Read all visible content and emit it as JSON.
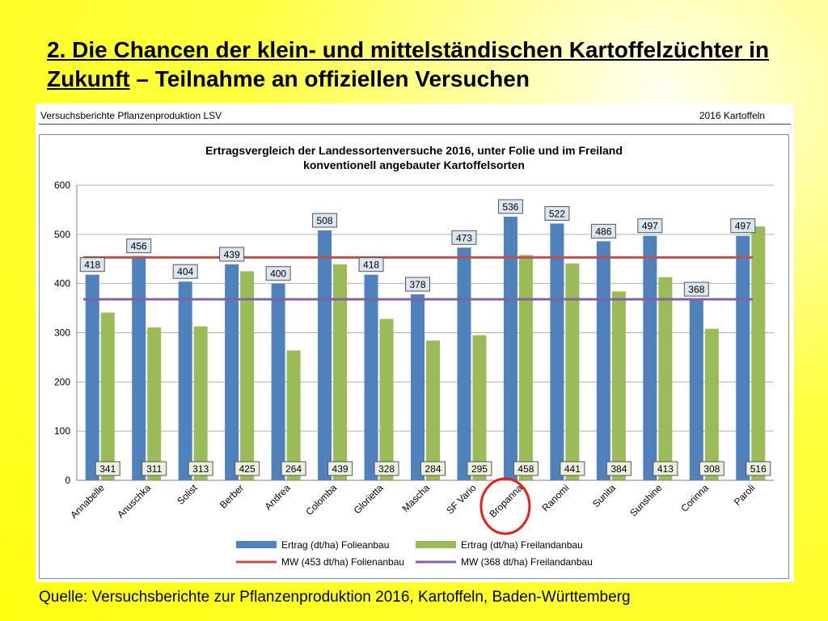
{
  "slide": {
    "title_underlined": "2. Die Chancen der klein- und mittelständischen Kartoffelzüchter in Zukunft",
    "title_rest": " – Teilnahme an offiziellen Versuchen",
    "source": "Quelle: Versuchsberichte zur Pflanzenproduktion 2016, Kartoffeln, Baden-Württemberg"
  },
  "panel": {
    "header_left": "Versuchsberichte Pflanzenproduktion LSV",
    "header_right": "2016 Kartoffeln"
  },
  "chart_data": {
    "type": "bar",
    "title_line1": "Ertragsvergleich der Landessortenversuche 2016, unter Folie und im Freiland",
    "title_line2": "konventionell angebauter Kartoffelsorten",
    "categories": [
      "Annabelle",
      "Anuschka",
      "Solist",
      "Berber",
      "Andrea",
      "Colomba",
      "Glorietta",
      "Mascha",
      "SF Vario",
      "Bropanna",
      "Ranomi",
      "Sunita",
      "Sunshine",
      "Corinna",
      "Paroli"
    ],
    "series": [
      {
        "name": "Ertrag (dt/ha) Folieanbau",
        "color": "#4f81bd",
        "values": [
          418,
          456,
          404,
          439,
          400,
          508,
          418,
          378,
          473,
          536,
          522,
          486,
          497,
          368,
          497
        ]
      },
      {
        "name": "Ertrag (dt/ha) Freilandanbau",
        "color": "#9bbb59",
        "values": [
          341,
          311,
          313,
          425,
          264,
          439,
          328,
          284,
          295,
          458,
          441,
          384,
          413,
          308,
          516
        ]
      }
    ],
    "reference_lines": [
      {
        "name": "MW (453 dt/ha) Folienanbau",
        "value": 453,
        "color": "#c0504d"
      },
      {
        "name": "MW (368 dt/ha) Freilandanbau",
        "value": 368,
        "color": "#8064a2"
      }
    ],
    "y_ticks": [
      "0",
      "100",
      "200",
      "300",
      "400",
      "500",
      "600"
    ],
    "ylim": [
      0,
      600
    ],
    "grid": true,
    "legend": "bottom",
    "highlighted_category": "Bropanna",
    "highlight_color": "#e8201a"
  }
}
